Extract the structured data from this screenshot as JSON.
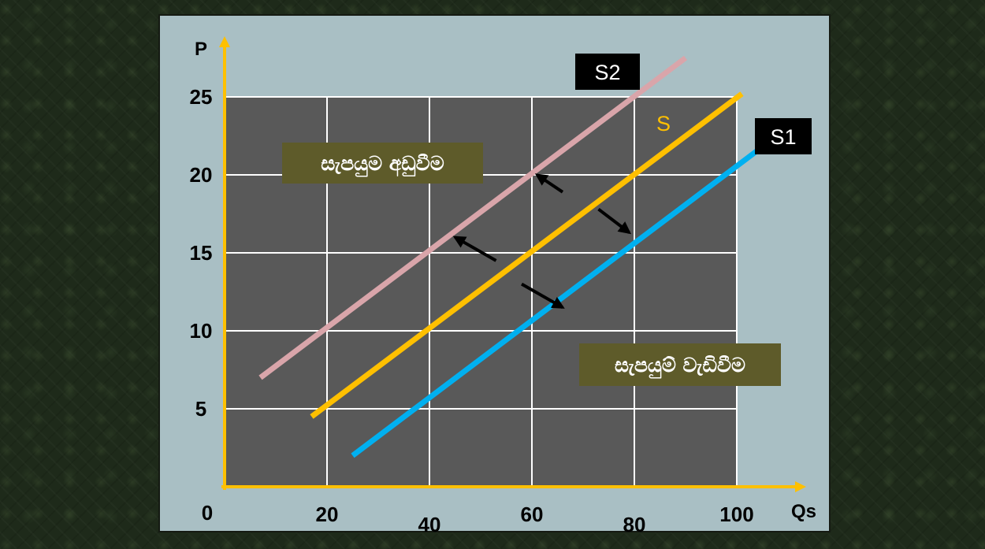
{
  "chart_data": {
    "type": "line",
    "xlabel": "Qs",
    "ylabel": "P",
    "origin_label": "0",
    "x_ticks": [
      20,
      40,
      60,
      80,
      100
    ],
    "y_ticks": [
      5,
      10,
      15,
      20,
      25
    ],
    "xlim": [
      0,
      100
    ],
    "ylim": [
      0,
      25
    ],
    "grid": true,
    "series": [
      {
        "name": "S2",
        "color": "#d9a5aa",
        "label_bg": "#000000",
        "label_color": "#ffffff",
        "x": [
          7,
          90
        ],
        "y": [
          7,
          27.5
        ]
      },
      {
        "name": "S",
        "color": "#ffc000",
        "label_bg": "",
        "label_color": "#ffc000",
        "x": [
          17,
          101
        ],
        "y": [
          4.5,
          25.2
        ]
      },
      {
        "name": "S1",
        "color": "#00b0f0",
        "label_bg": "#000000",
        "label_color": "#ffffff",
        "x": [
          25,
          105
        ],
        "y": [
          2,
          21.8
        ]
      }
    ],
    "annotations": [
      {
        "text": "සැපයුම අඩුවීම",
        "bg": "#5e5b2a",
        "anchor_x": 12,
        "anchor_y": 20.8
      },
      {
        "text": "සැපයුම් වැඩිවීම",
        "bg": "#5e5b2a",
        "anchor_x": 70,
        "anchor_y": 7.8
      }
    ],
    "arrows": [
      {
        "from": [
          53,
          14.5
        ],
        "to": [
          45,
          16
        ]
      },
      {
        "from": [
          58,
          13
        ],
        "to": [
          66,
          11.5
        ]
      },
      {
        "from": [
          66,
          18.9
        ],
        "to": [
          61,
          20
        ]
      },
      {
        "from": [
          73,
          17.8
        ],
        "to": [
          79,
          16.3
        ]
      }
    ],
    "colors": {
      "plot_bg": "#595959",
      "grid": "#ffffff",
      "axis": "#ffc000",
      "arrow": "#000000"
    }
  }
}
